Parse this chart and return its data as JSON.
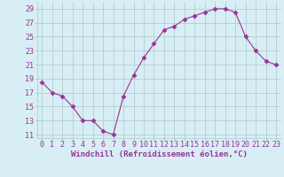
{
  "x": [
    0,
    1,
    2,
    3,
    4,
    5,
    6,
    7,
    8,
    9,
    10,
    11,
    12,
    13,
    14,
    15,
    16,
    17,
    18,
    19,
    20,
    21,
    22,
    23
  ],
  "y": [
    18.5,
    17.0,
    16.5,
    15.0,
    13.0,
    13.0,
    11.5,
    11.0,
    16.5,
    19.5,
    22.0,
    24.0,
    26.0,
    26.5,
    27.5,
    28.0,
    28.5,
    29.0,
    29.0,
    28.5,
    25.0,
    23.0,
    21.5,
    21.0
  ],
  "line_color": "#993399",
  "marker": "D",
  "marker_size": 2.5,
  "bg_color": "#d7eef4",
  "grid_color": "#b0c8cc",
  "xlabel": "Windchill (Refroidissement éolien,°C)",
  "ylabel_ticks": [
    11,
    13,
    15,
    17,
    19,
    21,
    23,
    25,
    27,
    29
  ],
  "xlim": [
    -0.5,
    23.5
  ],
  "ylim": [
    10.5,
    30.0
  ],
  "font_color": "#993399",
  "tick_fontsize": 6,
  "xlabel_fontsize": 6.5
}
